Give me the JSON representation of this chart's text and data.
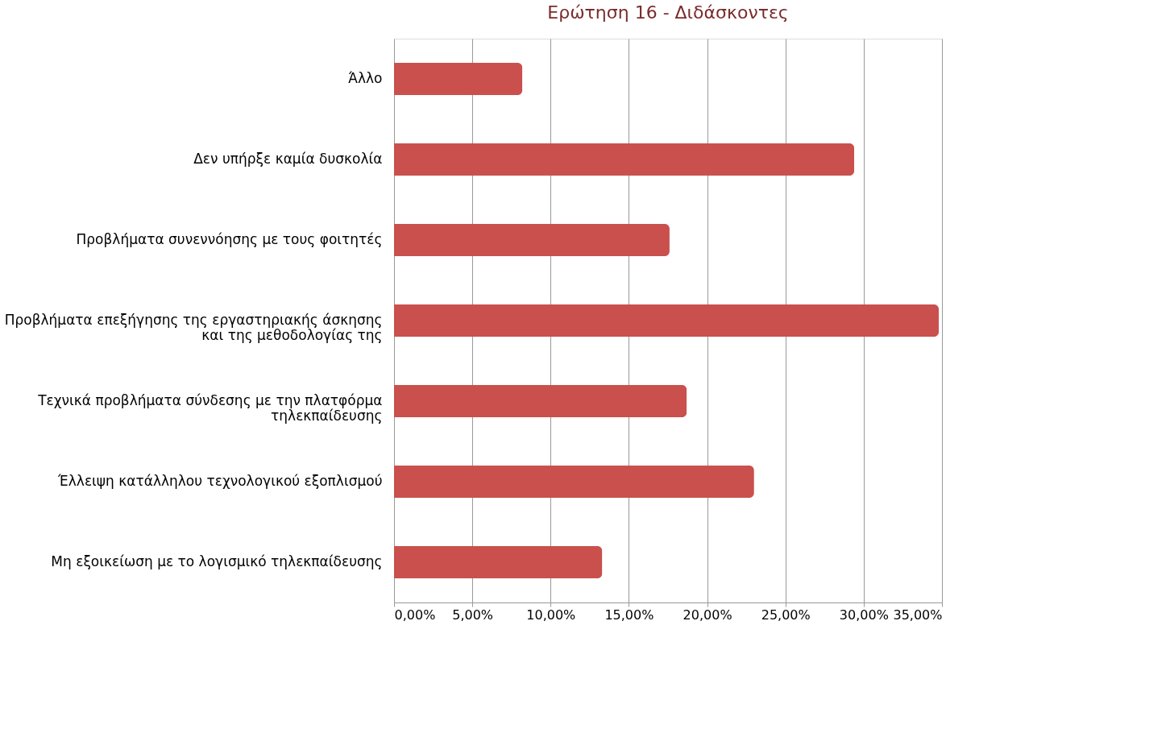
{
  "chart_data": {
    "type": "bar",
    "orientation": "horizontal",
    "title": "Ερώτηση 16 - Διδάσκοντες",
    "categories": [
      "Άλλο",
      "Δεν υπήρξε καμία δυσκολία",
      "Προβλήματα συνεννόησης με τους φοιτητές",
      "Προβλήματα επεξήγησης της εργαστηριακής άσκησης και της μεθοδολογίας της",
      "Τεχνικά προβλήματα σύνδεσης με την πλατφόρμα τηλεκπαίδευσης",
      "Έλλειψη κατάλληλου τεχνολογικού εξοπλισμού",
      "Μη εξοικείωση με το λογισμικό τηλεκπαίδευσης"
    ],
    "values": [
      8.2,
      29.4,
      17.6,
      34.8,
      18.7,
      23.0,
      13.3
    ],
    "color": "#c9504d",
    "xlim": [
      0,
      35
    ],
    "xticks": [
      {
        "value": 0,
        "label": "0,00%"
      },
      {
        "value": 5,
        "label": "5,00%"
      },
      {
        "value": 10,
        "label": "10,00%"
      },
      {
        "value": 15,
        "label": "15,00%"
      },
      {
        "value": 20,
        "label": "20,00%"
      },
      {
        "value": 25,
        "label": "25,00%"
      },
      {
        "value": 30,
        "label": "30,00%"
      },
      {
        "value": 35,
        "label": "35,00%"
      }
    ],
    "grid": "x"
  }
}
